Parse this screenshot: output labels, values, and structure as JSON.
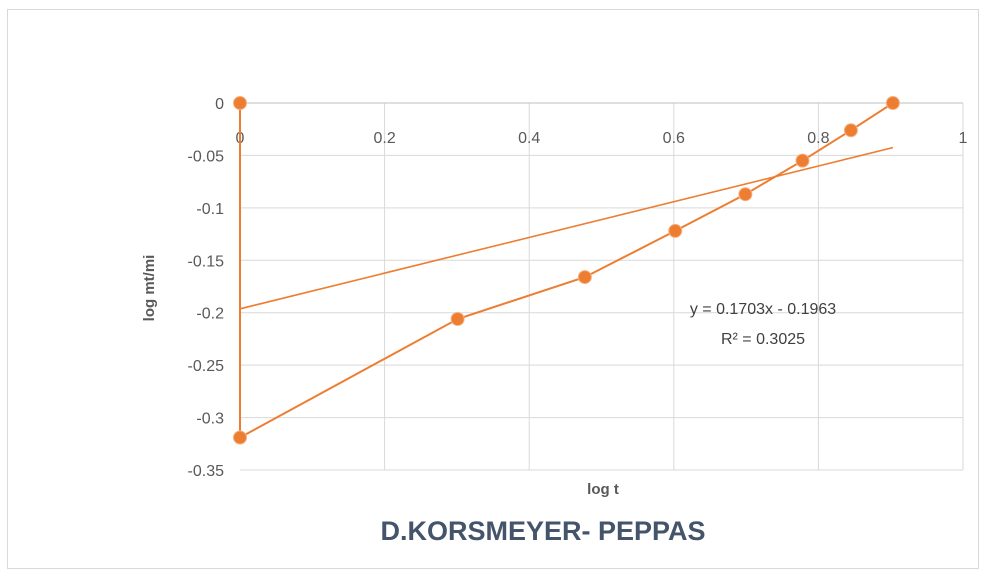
{
  "chart_data": {
    "type": "scatter",
    "title": "D.KORSMEYER- PEPPAS",
    "xlabel": "log t",
    "ylabel": "log mt/mi",
    "xlim": [
      0,
      1
    ],
    "ylim": [
      -0.35,
      0
    ],
    "x_ticks": [
      "0",
      "0.2",
      "0.4",
      "0.6",
      "0.8",
      "1"
    ],
    "y_ticks": [
      "0",
      "-0.05",
      "-0.1",
      "-0.15",
      "-0.2",
      "-0.25",
      "-0.3",
      "-0.35"
    ],
    "x_tick_values": [
      0,
      0.2,
      0.4,
      0.6,
      0.8,
      1
    ],
    "y_tick_values": [
      0,
      -0.05,
      -0.1,
      -0.15,
      -0.2,
      -0.25,
      -0.3,
      -0.35
    ],
    "grid": true,
    "series": [
      {
        "color": "#ed7d31",
        "points": [
          {
            "x": 0,
            "y": 0
          },
          {
            "x": 0,
            "y": -0.319
          },
          {
            "x": 0.301,
            "y": -0.206
          },
          {
            "x": 0.477,
            "y": -0.166
          },
          {
            "x": 0.602,
            "y": -0.122
          },
          {
            "x": 0.699,
            "y": -0.087
          },
          {
            "x": 0.778,
            "y": -0.055
          },
          {
            "x": 0.845,
            "y": -0.026
          },
          {
            "x": 0.903,
            "y": 0
          }
        ]
      }
    ],
    "trendline": {
      "type": "linear",
      "slope": 0.1703,
      "intercept": -0.1963,
      "x_range": [
        0,
        0.903
      ],
      "color": "#ed7d31",
      "equation": "y = 0.1703x - 0.1963",
      "r_squared": "R² = 0.3025"
    }
  }
}
